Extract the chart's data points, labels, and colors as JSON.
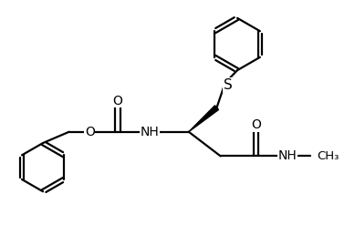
{
  "background_color": "#ffffff",
  "line_color": "#000000",
  "line_width": 1.6,
  "font_size": 10,
  "figsize": [
    3.89,
    2.69
  ],
  "dpi": 100,
  "xlim": [
    0,
    9
  ],
  "ylim": [
    0,
    6.5
  ]
}
